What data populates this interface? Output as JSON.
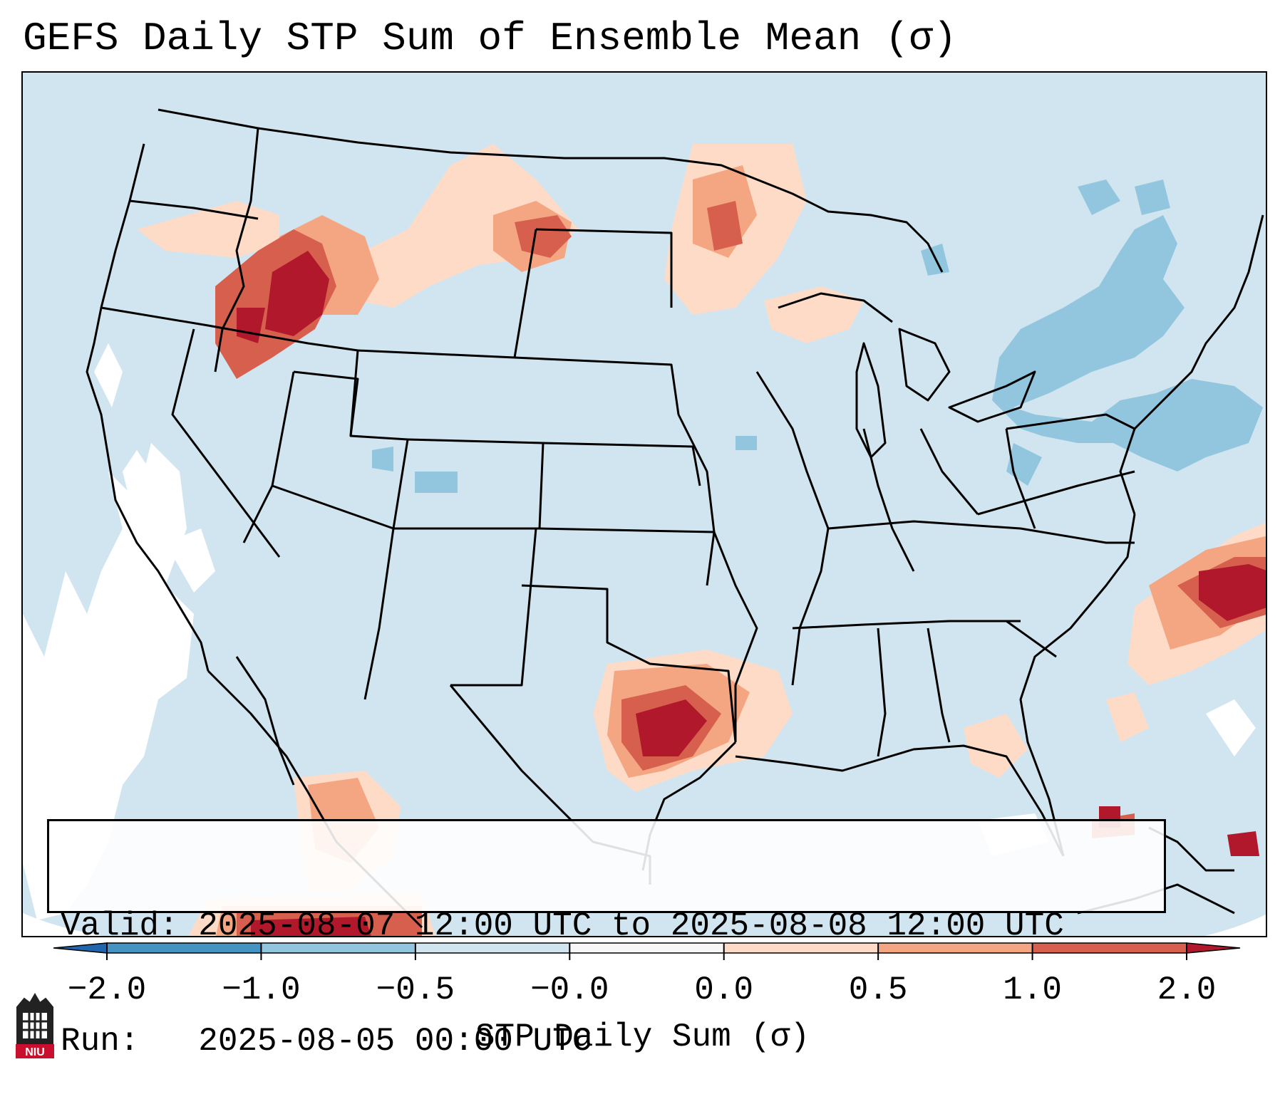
{
  "title": "GEFS Daily STP Sum of Ensemble Mean (σ)",
  "valid_text": "Valid: 2025-08-07 12:00 UTC to 2025-08-08 12:00 UTC",
  "run_text": "Run:   2025-08-05 00:00 UTC",
  "colorbar": {
    "label": "STP Daily Sum (σ)",
    "tick_labels": [
      "−2.0",
      "−1.0",
      "−0.5",
      "−0.0",
      "0.0",
      "0.5",
      "1.0",
      "2.0"
    ],
    "bin_colors": [
      "#4393c3",
      "#92c5de",
      "#d1e5f0",
      "#f7f7f7",
      "#fddbc7",
      "#f4a582",
      "#d6604d"
    ],
    "under_color": "#2166ac",
    "over_color": "#b2182b"
  },
  "map": {
    "region": "Contiguous United States",
    "background_color": "#d1e5f0",
    "anomaly_areas": [
      {
        "region": "Idaho / E Oregon / W Montana",
        "level": "high"
      },
      {
        "region": "Montana / North Dakota border",
        "level": "moderate"
      },
      {
        "region": "Minnesota / Manitoba border",
        "level": "moderate"
      },
      {
        "region": "Upper Michigan / Lake Superior",
        "level": "low"
      },
      {
        "region": "East Texas / Louisiana coast",
        "level": "high"
      },
      {
        "region": "South Texas coast",
        "level": "moderate"
      },
      {
        "region": "Western Atlantic offshore Carolinas",
        "level": "high"
      },
      {
        "region": "Northern Mexico",
        "level": "moderate"
      },
      {
        "region": "Bahamas",
        "level": "high"
      },
      {
        "region": "New York / New England",
        "level": "negative"
      },
      {
        "region": "Pacific coast offshore",
        "level": "near zero"
      }
    ]
  },
  "logo": {
    "text": "NIU",
    "color": "#c8102e"
  }
}
